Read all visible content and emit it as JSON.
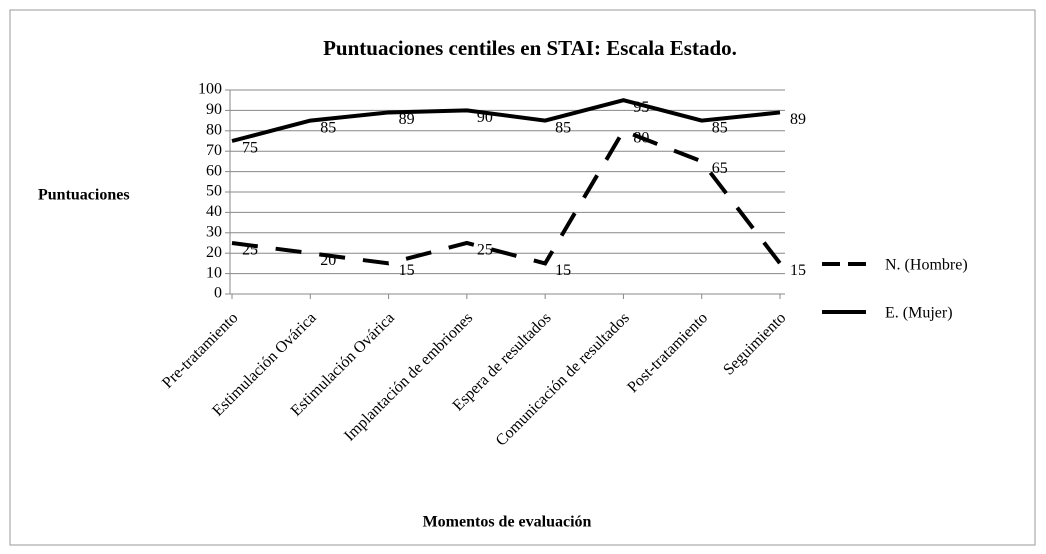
{
  "chart_data": {
    "type": "line",
    "title": "Puntuaciones centiles en STAI: Escala Estado.",
    "ylabel": "Puntuaciones",
    "xlabel": "Momentos de evaluación",
    "categories": [
      "Pre-tratamiento",
      "Estimulación Ovárica",
      "Estimulación Ovárica",
      "Implantación de embriones",
      "Espera de resultados",
      "Comunicación de resultados",
      "Post-tratamiento",
      "Seguimiento"
    ],
    "series": [
      {
        "name": "N. (Hombre)",
        "color": "#000000",
        "line_style": "dashed",
        "values": [
          25,
          20,
          15,
          25,
          15,
          80,
          65,
          15
        ]
      },
      {
        "name": "E. (Mujer)",
        "color": "#000000",
        "line_style": "solid",
        "values": [
          75,
          85,
          89,
          90,
          85,
          95,
          85,
          89
        ]
      }
    ],
    "ylim": [
      0,
      100
    ],
    "yticks": [
      0,
      10,
      20,
      30,
      40,
      50,
      60,
      70,
      80,
      90,
      100
    ],
    "grid": true,
    "legend": "right",
    "data_labels": true
  }
}
